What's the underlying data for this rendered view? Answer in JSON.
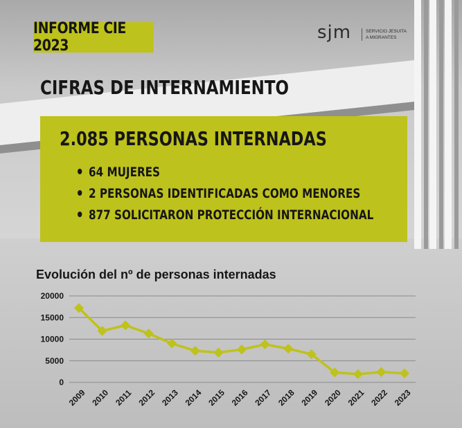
{
  "header": {
    "tag": "INFORME CIE 2023",
    "logo_mark": "sjm",
    "logo_org_line1": "SERVICIO JESUITA",
    "logo_org_line2": "A MIGRANTES"
  },
  "section_title": "CIFRAS DE INTERNAMIENTO",
  "highlight": {
    "headline": "2.085 PERSONAS INTERNADAS",
    "bullets": [
      "64 MUJERES",
      "2 PERSONAS IDENTIFICADAS COMO MENORES",
      "877 SOLICITARON PROTECCIÓN INTERNACIONAL"
    ]
  },
  "colors": {
    "accent": "#bec21c",
    "text": "#161616"
  },
  "chart_data": {
    "type": "line",
    "title": "Evolución del nº de personas internadas",
    "categories": [
      "2009",
      "2010",
      "2011",
      "2012",
      "2013",
      "2014",
      "2015",
      "2016",
      "2017",
      "2018",
      "2019",
      "2020",
      "2021",
      "2022",
      "2023"
    ],
    "values": [
      17200,
      11900,
      13200,
      11300,
      9000,
      7300,
      6900,
      7600,
      8800,
      7800,
      6500,
      2300,
      1900,
      2400,
      2085
    ],
    "yticks": [
      "0",
      "5000",
      "10000",
      "15000",
      "20000"
    ],
    "ylim": [
      0,
      20000
    ],
    "grid": true,
    "line_color": "#bec21c"
  }
}
